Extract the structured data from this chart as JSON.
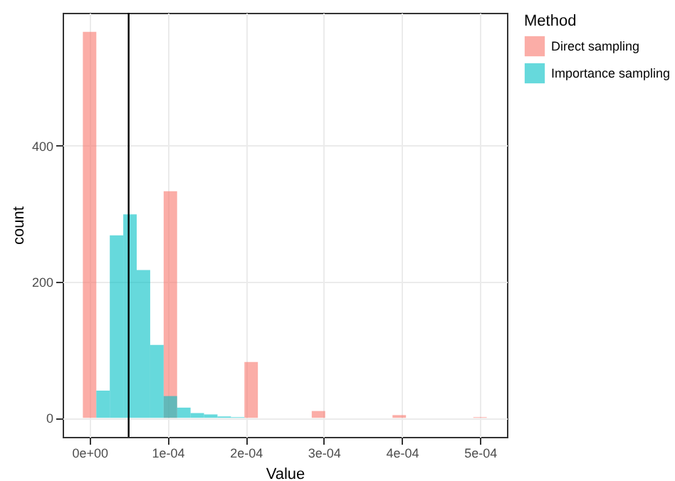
{
  "chart_data": {
    "type": "histogram",
    "xlabel": "Value",
    "ylabel": "count",
    "legend_title": "Method",
    "legend": "right",
    "grid": true,
    "bins": [
      -8.62e-06,
      8.62e-06,
      2.586e-05,
      4.31e-05,
      6.034e-05,
      7.759e-05,
      9.483e-05,
      0.00011207,
      0.00012931,
      0.00014655,
      0.00016379,
      0.00018103,
      0.00019828,
      0.00021552,
      0.00023276,
      0.00025,
      0.00026724,
      0.00028448,
      0.00030172,
      0.00031897,
      0.00033621,
      0.00035345,
      0.00037069,
      0.00038793,
      0.00040517,
      0.00042241,
      0.00043966,
      0.0004569,
      0.00047414,
      0.00049138,
      0.00050862
    ],
    "series": [
      {
        "name": "Direct sampling",
        "color": "#F8766D",
        "values": [
          567,
          0,
          0,
          0,
          0,
          0,
          333,
          0,
          0,
          0,
          0,
          0,
          82,
          0,
          0,
          0,
          0,
          10,
          0,
          0,
          0,
          0,
          0,
          4,
          0,
          0,
          0,
          0,
          0,
          1
        ]
      },
      {
        "name": "Importance sampling",
        "color": "#00BFC4",
        "values": [
          0,
          40,
          268,
          299,
          217,
          107,
          32,
          15,
          7,
          5,
          2,
          1,
          0,
          0,
          0,
          0,
          0,
          0,
          0,
          0,
          0,
          0,
          0,
          0,
          0,
          0,
          0,
          0,
          0,
          0
        ]
      }
    ],
    "xlim": [
      -3.45e-05,
      0.0005345
    ],
    "ylim": [
      -28,
      595
    ],
    "xticks": [
      {
        "value": 0,
        "label": "0e+00"
      },
      {
        "value": 0.0001,
        "label": "1e-04"
      },
      {
        "value": 0.0002,
        "label": "2e-04"
      },
      {
        "value": 0.0003,
        "label": "3e-04"
      },
      {
        "value": 0.0004,
        "label": "4e-04"
      },
      {
        "value": 0.0005,
        "label": "5e-04"
      }
    ],
    "yticks": [
      0,
      200,
      400
    ],
    "ref_lines": [
      {
        "axis": "x",
        "value": 5e-05,
        "color": "#000000"
      }
    ]
  }
}
